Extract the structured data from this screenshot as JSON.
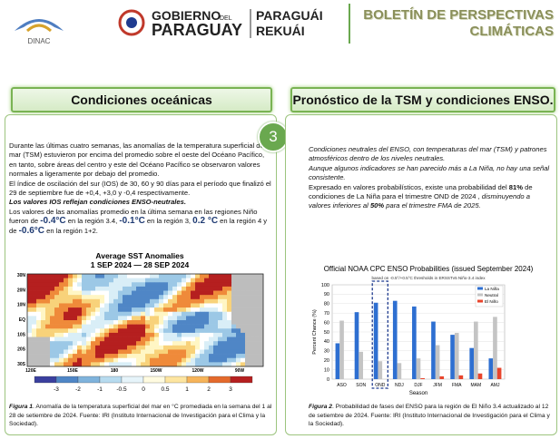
{
  "header": {
    "logo_text": "DINAC",
    "gov_line1": "GOBIERNO",
    "gov_del": "DEL",
    "gov_line2": "PARAGUAY",
    "guarani_line1": "PARAGUÁI",
    "guarani_line2": "REKUÁI",
    "bulletin_title_1": "BOLETÍN DE PERSPECTIVAS",
    "bulletin_title_2": "CLIMÁTICAS"
  },
  "page_number": "3",
  "left": {
    "title": "Condiciones oceánicas",
    "paragraphs": [
      [
        "Durante las últimas cuatro semanas, las anomalías de la  temperatura superficial del mar (TSM) estuvieron por encima del promedio sobre el oeste del Océano Pacífico, en tanto, sobre áreas del centro y este del Océano Pacífico se observaron valores normales a ligeramente por debajo del promedio."
      ],
      [
        "El índice de oscilación del sur (IOS) de 30, 60 y 90 días para el período que finalizó el 29 de septiembre fue de +0,4, +3,0 y -0,4 respectivamente."
      ],
      [
        "Los valores IOS reflejan condiciones ENSO-neutrales."
      ],
      [
        "Los valores de las anomalías promedio en la última semana en las regiones Niño fueron de ",
        "-0.4°C",
        " en la región 3.4, ",
        "-0.1°C",
        " en la región 3, ",
        "0.2 °C",
        " en la región 4 y de ",
        "-0.6°C",
        " en la región 1+2."
      ]
    ],
    "figure": {
      "title": "Average SST Anomalies",
      "dates": "1 SEP 2024 — 28 SEP 2024",
      "lat_labels": [
        "30N",
        "20N",
        "10N",
        "EQ",
        "10S",
        "20S",
        "30S"
      ],
      "lon_labels": [
        "120E",
        "150E",
        "180",
        "150W",
        "120W",
        "90W"
      ],
      "colorbar_ticks": [
        -3,
        -2,
        -1,
        -0.5,
        0,
        0.5,
        1,
        2,
        3
      ]
    },
    "caption": [
      "Figura 1",
      ". Anomalía de la temperatura superficial del mar en °C promediada en la semana del 1 al 28 de setiembre de 2024. Fuente: IRI (Instituto Internacional de Investigación para el Clima y la Sociedad)."
    ]
  },
  "right": {
    "title": "Pronóstico de la TSM y condiciones ENSO.",
    "paragraphs": [
      [
        "Condiciones neutrales del ENSO, con temperaturas del mar (TSM) y patrones atmosféricos dentro de los niveles neutrales."
      ],
      [
        "Aunque algunos indicadores se han parecido más a La Niña, no hay una señal consistente."
      ],
      [
        "Expresado en valores probabilísticos, existe una probabilidad del ",
        "81%",
        " de condiciones de La Niña para el trimestre OND de 2024 ,",
        " disminuyendo a valores inferiores al ",
        "50%",
        " para el trimestre FMA de 2025."
      ]
    ],
    "caption": [
      "Figura 2",
      ". Probabilidad de fases del ENSO para la región de El Niño 3.4 actualizado al 12 de setiembre de 2024. Fuente: IRI (Instituto Internacional de Investigación para el Clima y la Sociedad)."
    ]
  },
  "chart_data": {
    "type": "bar",
    "title": "Official NOAA CPC ENSO Probabilities (issued September 2024)",
    "subtitle": "based on -0.5°/+0.5°C thresholds in ERSSTv5 Niño-3.4 index",
    "x_label": "Season",
    "y_label": "Percent Chance (%)",
    "categories": [
      "ASO",
      "SON",
      "OND",
      "NDJ",
      "DJF",
      "JFM",
      "FMA",
      "MAM",
      "AMJ"
    ],
    "series": [
      {
        "name": "La Niña",
        "color": "#2e6fd1",
        "values": [
          38,
          71,
          81,
          83,
          77,
          61,
          47,
          33,
          22
        ]
      },
      {
        "name": "Neutral",
        "color": "#c4c4c4",
        "values": [
          62,
          29,
          19,
          17,
          22,
          36,
          49,
          61,
          66
        ]
      },
      {
        "name": "El Niño",
        "color": "#e8452c",
        "values": [
          0,
          0,
          0,
          0,
          1,
          3,
          4,
          6,
          12
        ]
      }
    ],
    "ylim": [
      0,
      100
    ],
    "yticks": [
      0,
      10,
      20,
      30,
      40,
      50,
      60,
      70,
      80,
      90,
      100
    ],
    "grid": true,
    "legend": "upper right"
  }
}
